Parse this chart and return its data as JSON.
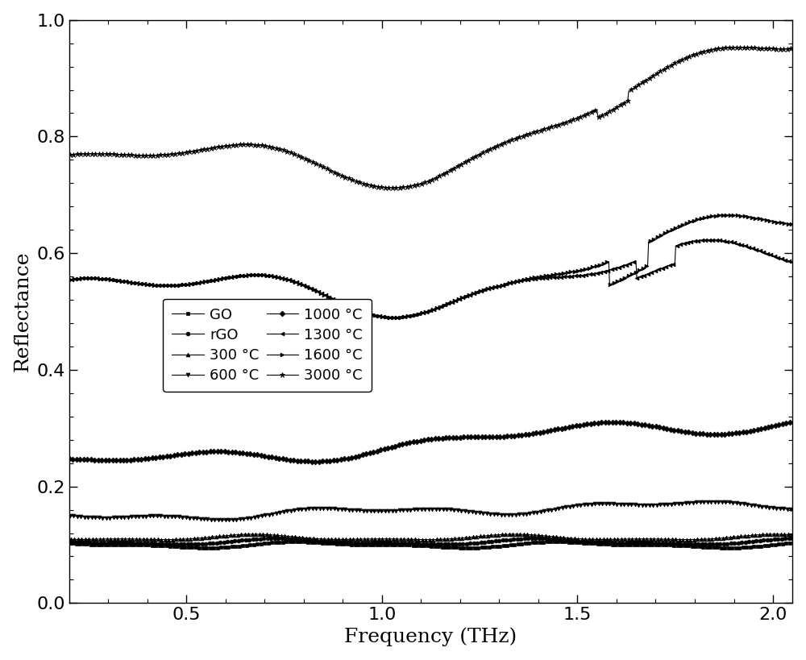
{
  "xlabel": "Frequency (THz)",
  "ylabel": "Reflectance",
  "xlim": [
    0.2,
    2.05
  ],
  "ylim": [
    0.0,
    1.0
  ],
  "xticks": [
    0.5,
    1.0,
    1.5,
    2.0
  ],
  "yticks": [
    0.0,
    0.2,
    0.4,
    0.6,
    0.8,
    1.0
  ],
  "background_color": "#ffffff",
  "legend_entries": [
    "GO",
    "rGO",
    "300 °C",
    "600 °C",
    "1000 °C",
    "1300 °C",
    "1600 °C",
    "3000 °C"
  ],
  "font_size_label": 18,
  "font_size_tick": 16,
  "font_size_legend": 13,
  "marker_size": 3.5,
  "marker_every": 4,
  "linewidth": 0.8
}
